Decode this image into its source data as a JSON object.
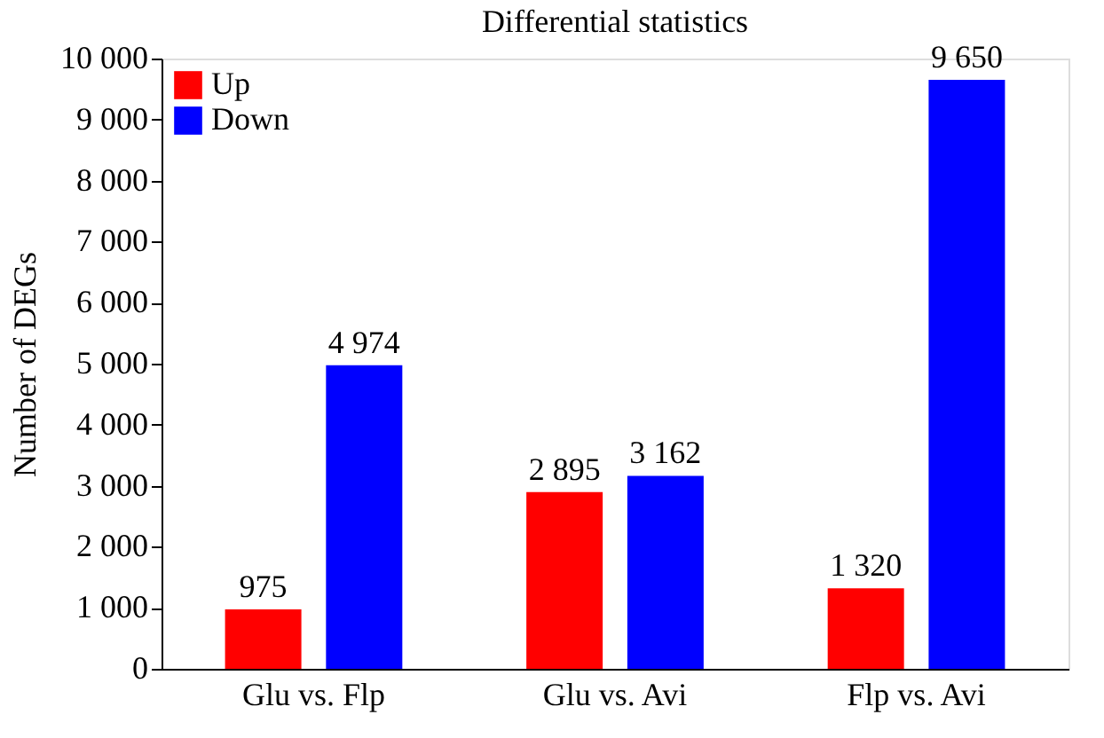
{
  "chart_data": {
    "type": "bar",
    "title": "Differential statistics",
    "ylabel": "Number of DEGs",
    "categories": [
      "Glu vs. Flp",
      "Glu vs. Avi",
      "Flp vs. Avi"
    ],
    "series": [
      {
        "name": "Up",
        "color": "#ff0000",
        "values": [
          975,
          2895,
          1320
        ],
        "value_labels": [
          "975",
          "2 895",
          "1 320"
        ]
      },
      {
        "name": "Down",
        "color": "#0000ff",
        "values": [
          4974,
          3162,
          9650
        ],
        "value_labels": [
          "4 974",
          "3 162",
          "9 650"
        ]
      }
    ],
    "ylim": [
      0,
      10000
    ],
    "yticks": [
      0,
      {
        "value": 1000,
        "label": "1 000"
      },
      {
        "value": 2000,
        "label": "2 000"
      },
      {
        "value": 3000,
        "label": "3 000"
      },
      {
        "value": 4000,
        "label": "4 000"
      },
      {
        "value": 5000,
        "label": "5 000"
      },
      {
        "value": 6000,
        "label": "6 000"
      },
      {
        "value": 7000,
        "label": "7 000"
      },
      {
        "value": 8000,
        "label": "8 000"
      },
      {
        "value": 9000,
        "label": "9 000"
      },
      {
        "value": 10000,
        "label": "10 000"
      }
    ],
    "grid": false,
    "legend": "top left"
  }
}
